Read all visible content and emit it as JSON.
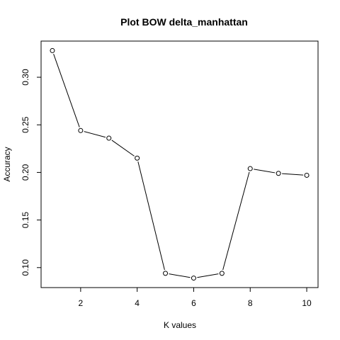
{
  "chart_data": {
    "type": "line",
    "title": "Plot BOW delta_manhattan",
    "xlabel": "K values",
    "ylabel": "Accuracy",
    "x": [
      1,
      2,
      3,
      4,
      5,
      6,
      7,
      8,
      9,
      10
    ],
    "series": [
      {
        "values": [
          0.328,
          0.244,
          0.236,
          0.215,
          0.094,
          0.089,
          0.094,
          0.204,
          0.199,
          0.197
        ]
      }
    ],
    "marker": "open-circle",
    "line_color": "#000000",
    "xlim": [
      0.6,
      10.4
    ],
    "ylim": [
      0.079,
      0.338
    ],
    "x_ticks": [
      2,
      4,
      6,
      8,
      10
    ],
    "y_ticks": [
      0.1,
      0.15,
      0.2,
      0.25,
      0.3
    ],
    "x_tick_labels": [
      "2",
      "4",
      "6",
      "8",
      "10"
    ],
    "y_tick_labels": [
      "0.10",
      "0.15",
      "0.20",
      "0.25",
      "0.30"
    ],
    "grid": false,
    "legend": "none"
  }
}
